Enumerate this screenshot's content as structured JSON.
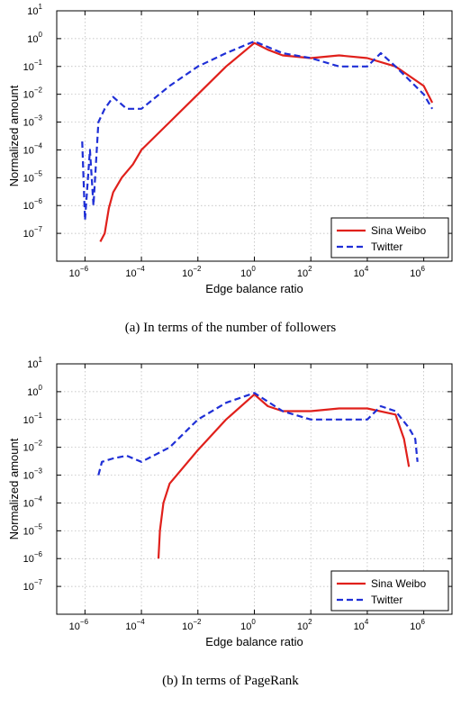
{
  "captions": {
    "a": "(a) In terms of the number of followers",
    "b": "(b) In terms of PageRank"
  },
  "colors": {
    "sina": "#e0201b",
    "twitter": "#1f2fd6"
  },
  "chart_data": [
    {
      "type": "line",
      "xlabel": "Edge balance ratio",
      "ylabel": "Normalized amount",
      "x_scale": "log",
      "y_scale": "log",
      "xlim": [
        1e-07,
        10000000.0
      ],
      "ylim": [
        1e-08,
        10
      ],
      "x_ticks": [
        1e-06,
        0.0001,
        0.01,
        1,
        100,
        10000,
        1000000
      ],
      "y_ticks": [
        1e-07,
        1e-06,
        1e-05,
        0.0001,
        0.001,
        0.01,
        0.1,
        1,
        10
      ],
      "grid": true,
      "legend_position": "bottom-right",
      "series": [
        {
          "name": "Sina Weibo",
          "style": "solid",
          "points": [
            [
              3.5e-06,
              5e-08
            ],
            [
              5e-06,
              1e-07
            ],
            [
              7e-06,
              8e-07
            ],
            [
              1e-05,
              3e-06
            ],
            [
              2e-05,
              1e-05
            ],
            [
              5e-05,
              3e-05
            ],
            [
              0.0001,
              0.0001
            ],
            [
              0.001,
              0.001
            ],
            [
              0.01,
              0.01
            ],
            [
              0.1,
              0.1
            ],
            [
              1,
              0.7
            ],
            [
              3,
              0.4
            ],
            [
              10,
              0.25
            ],
            [
              100,
              0.2
            ],
            [
              1000,
              0.25
            ],
            [
              10000.0,
              0.2
            ],
            [
              100000.0,
              0.1
            ],
            [
              1000000.0,
              0.02
            ],
            [
              2000000.0,
              0.005
            ]
          ]
        },
        {
          "name": "Twitter",
          "style": "dashed",
          "points": [
            [
              8e-07,
              0.0002
            ],
            [
              1e-06,
              3e-07
            ],
            [
              1.5e-06,
              0.0001
            ],
            [
              2e-06,
              1e-06
            ],
            [
              3e-06,
              0.001
            ],
            [
              5e-06,
              0.003
            ],
            [
              1e-05,
              0.008
            ],
            [
              3e-05,
              0.003
            ],
            [
              0.0001,
              0.003
            ],
            [
              0.001,
              0.02
            ],
            [
              0.01,
              0.1
            ],
            [
              0.1,
              0.3
            ],
            [
              1,
              0.8
            ],
            [
              3,
              0.5
            ],
            [
              10,
              0.3
            ],
            [
              100,
              0.2
            ],
            [
              1000,
              0.1
            ],
            [
              10000.0,
              0.1
            ],
            [
              30000.0,
              0.3
            ],
            [
              100000.0,
              0.1
            ],
            [
              1000000.0,
              0.01
            ],
            [
              2000000.0,
              0.003
            ]
          ]
        }
      ]
    },
    {
      "type": "line",
      "xlabel": "Edge balance ratio",
      "ylabel": "Normalized amount",
      "x_scale": "log",
      "y_scale": "log",
      "xlim": [
        1e-07,
        10000000.0
      ],
      "ylim": [
        1e-08,
        10
      ],
      "x_ticks": [
        1e-06,
        0.0001,
        0.01,
        1,
        100,
        10000,
        1000000
      ],
      "y_ticks": [
        1e-07,
        1e-06,
        1e-05,
        0.0001,
        0.001,
        0.01,
        0.1,
        1,
        10
      ],
      "grid": true,
      "legend_position": "bottom-right",
      "series": [
        {
          "name": "Sina Weibo",
          "style": "solid",
          "points": [
            [
              0.0004,
              1e-06
            ],
            [
              0.00045,
              1e-05
            ],
            [
              0.0006,
              0.0001
            ],
            [
              0.001,
              0.0005
            ],
            [
              0.01,
              0.008
            ],
            [
              0.1,
              0.1
            ],
            [
              1,
              0.8
            ],
            [
              3,
              0.3
            ],
            [
              10,
              0.2
            ],
            [
              100,
              0.2
            ],
            [
              1000,
              0.25
            ],
            [
              10000.0,
              0.25
            ],
            [
              100000.0,
              0.15
            ],
            [
              200000.0,
              0.02
            ],
            [
              300000.0,
              0.002
            ]
          ]
        },
        {
          "name": "Twitter",
          "style": "dashed",
          "points": [
            [
              3e-06,
              0.001
            ],
            [
              4e-06,
              0.003
            ],
            [
              1e-05,
              0.004
            ],
            [
              3e-05,
              0.005
            ],
            [
              0.0001,
              0.003
            ],
            [
              0.001,
              0.01
            ],
            [
              0.01,
              0.1
            ],
            [
              0.1,
              0.4
            ],
            [
              1,
              0.9
            ],
            [
              10,
              0.2
            ],
            [
              100,
              0.1
            ],
            [
              1000,
              0.1
            ],
            [
              10000.0,
              0.1
            ],
            [
              30000.0,
              0.3
            ],
            [
              100000.0,
              0.2
            ],
            [
              300000.0,
              0.05
            ],
            [
              500000.0,
              0.02
            ],
            [
              600000.0,
              0.003
            ]
          ]
        }
      ]
    }
  ]
}
